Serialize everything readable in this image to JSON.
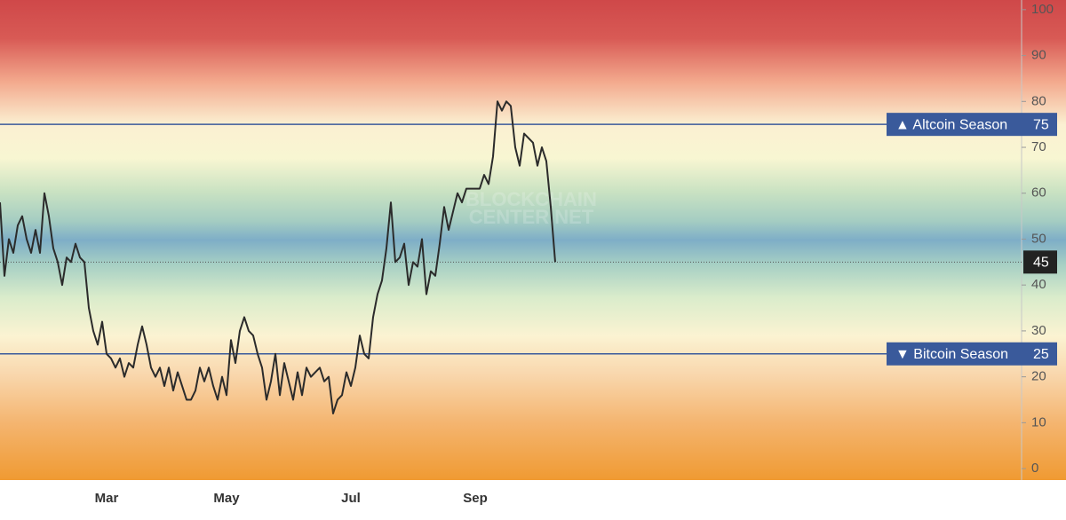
{
  "chart_data": {
    "type": "line",
    "categories": [
      null,
      null,
      null,
      null,
      null,
      null,
      null,
      null,
      null,
      null,
      null,
      null,
      null,
      null,
      null,
      null,
      null,
      null,
      null,
      null,
      null,
      null,
      null,
      null,
      "Mar",
      null,
      null,
      null,
      null,
      null,
      null,
      null,
      null,
      null,
      null,
      null,
      null,
      null,
      null,
      null,
      null,
      null,
      null,
      null,
      null,
      null,
      null,
      null,
      null,
      null,
      null,
      "May",
      null,
      null,
      null,
      null,
      null,
      null,
      null,
      null,
      null,
      null,
      null,
      null,
      null,
      null,
      null,
      null,
      null,
      null,
      null,
      null,
      null,
      null,
      null,
      null,
      null,
      null,
      null,
      "Jul",
      null,
      null,
      null,
      null,
      null,
      null,
      null,
      null,
      null,
      null,
      null,
      null,
      null,
      null,
      null,
      null,
      null,
      null,
      null,
      null,
      null,
      null,
      null,
      null,
      null,
      null,
      null,
      "Sep",
      null,
      null,
      null,
      null,
      null,
      null,
      null,
      null,
      null,
      null,
      null,
      null,
      null,
      null,
      null,
      null,
      null,
      null
    ],
    "values": [
      58,
      42,
      50,
      47,
      53,
      55,
      50,
      47,
      52,
      47,
      60,
      55,
      48,
      45,
      40,
      46,
      45,
      49,
      46,
      45,
      35,
      30,
      27,
      32,
      25,
      24,
      22,
      24,
      20,
      23,
      22,
      27,
      31,
      27,
      22,
      20,
      22,
      18,
      22,
      17,
      21,
      18,
      15,
      15,
      17,
      22,
      19,
      22,
      18,
      15,
      20,
      16,
      28,
      23,
      30,
      33,
      30,
      29,
      25,
      22,
      15,
      19,
      25,
      16,
      23,
      19,
      15,
      21,
      16,
      22,
      20,
      21,
      22,
      19,
      20,
      12,
      15,
      16,
      21,
      18,
      22,
      29,
      25,
      24,
      33,
      38,
      41,
      48,
      58,
      45,
      46,
      49,
      40,
      45,
      44,
      50,
      38,
      43,
      42,
      49,
      57,
      52,
      56,
      60,
      58,
      61,
      61,
      61,
      61,
      64,
      62,
      68,
      80,
      78,
      80,
      79,
      70,
      66,
      73,
      72,
      71,
      66,
      70,
      67,
      57,
      45
    ],
    "color": "#2b2b2b",
    "ylim": [
      -2.5,
      102.1
    ],
    "yticks": [
      0,
      10,
      20,
      30,
      40,
      50,
      60,
      70,
      80,
      90,
      100
    ],
    "lines": [
      {
        "value": 75,
        "label": "▲ Altcoin Season"
      },
      {
        "value": 25,
        "label": "▼ Bitcoin Season"
      }
    ],
    "line_color": "#3a5a9b",
    "watermark": [
      "BLOCKCHAIN",
      "CENTER.NET"
    ]
  }
}
